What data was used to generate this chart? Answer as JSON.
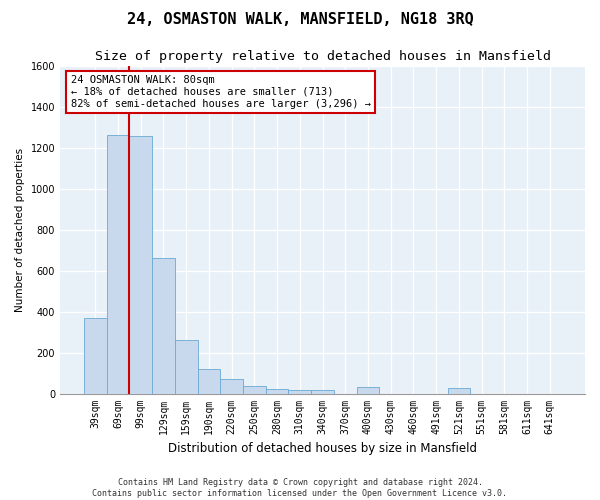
{
  "title": "24, OSMASTON WALK, MANSFIELD, NG18 3RQ",
  "subtitle": "Size of property relative to detached houses in Mansfield",
  "xlabel": "Distribution of detached houses by size in Mansfield",
  "ylabel": "Number of detached properties",
  "categories": [
    "39sqm",
    "69sqm",
    "99sqm",
    "129sqm",
    "159sqm",
    "190sqm",
    "220sqm",
    "250sqm",
    "280sqm",
    "310sqm",
    "340sqm",
    "370sqm",
    "400sqm",
    "430sqm",
    "460sqm",
    "491sqm",
    "521sqm",
    "551sqm",
    "581sqm",
    "611sqm",
    "641sqm"
  ],
  "values": [
    370,
    1260,
    1255,
    660,
    260,
    120,
    70,
    35,
    20,
    15,
    15,
    0,
    30,
    0,
    0,
    0,
    28,
    0,
    0,
    0,
    0
  ],
  "bar_color": "#c8d9ee",
  "bar_edge_color": "#6aaad4",
  "annotation_text": "24 OSMASTON WALK: 80sqm\n← 18% of detached houses are smaller (713)\n82% of semi-detached houses are larger (3,296) →",
  "annotation_box_color": "#ffffff",
  "annotation_border_color": "#cc0000",
  "red_line_x": 1.5,
  "ylim": [
    0,
    1600
  ],
  "yticks": [
    0,
    200,
    400,
    600,
    800,
    1000,
    1200,
    1400,
    1600
  ],
  "footer1": "Contains HM Land Registry data © Crown copyright and database right 2024.",
  "footer2": "Contains public sector information licensed under the Open Government Licence v3.0.",
  "bg_color": "#e8f0f8",
  "grid_color": "#ffffff",
  "title_fontsize": 11,
  "subtitle_fontsize": 9.5,
  "annotation_fontsize": 7.5,
  "ylabel_fontsize": 7.5,
  "xlabel_fontsize": 8.5,
  "tick_fontsize": 7,
  "footer_fontsize": 6
}
